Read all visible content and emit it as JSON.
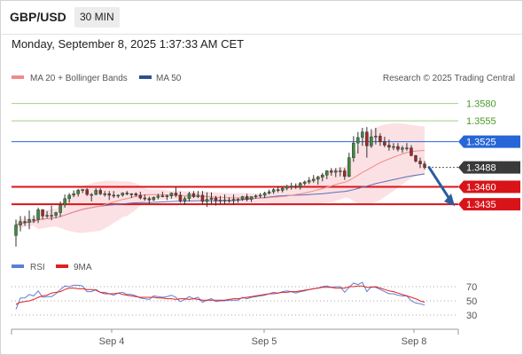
{
  "header": {
    "symbol": "GBP/USD",
    "timeframe": "30 MIN",
    "datetime": "Monday, September 8, 2025 1:37:33 AM CET"
  },
  "legend": {
    "ma20": "MA 20 + Bollinger Bands",
    "ma50": "MA 50",
    "credit": "Research © 2025 Trading Central"
  },
  "colors": {
    "up": "#3d8c3d",
    "down": "#a02828",
    "band": "#fadadd",
    "ma20": "#f08a8a",
    "ma50": "#5a6fb8",
    "resistance_green": "#a8cf8a",
    "pivot_blue": "#2766d6",
    "support_red": "#d8141a",
    "current_box": "#3a3a3a",
    "arrow": "#2b5c9e",
    "rsi": "#5b7fd6",
    "rsi_ma": "#e02020"
  },
  "chart_data": {
    "type": "candlestick",
    "ylim": [
      1.337,
      1.3605
    ],
    "price_scale": [
      "1.3580",
      "1.3555",
      "1.3525",
      "1.3488",
      "1.3460",
      "1.3435"
    ],
    "levels": [
      {
        "label": "1.3580",
        "value": 1.358,
        "kind": "resistance"
      },
      {
        "label": "1.3555",
        "value": 1.3555,
        "kind": "resistance"
      },
      {
        "label": "1.3525",
        "value": 1.3525,
        "kind": "pivot"
      },
      {
        "label": "1.3460",
        "value": 1.346,
        "kind": "support"
      },
      {
        "label": "1.3435",
        "value": 1.3435,
        "kind": "support"
      }
    ],
    "current": {
      "label": "1.3488",
      "value": 1.3488
    },
    "forecast": {
      "from": 1.3488,
      "to": 1.3435
    },
    "x_labels": [
      "Sep 4",
      "Sep 5",
      "Sep 8"
    ],
    "candles": [
      [
        1.339,
        1.3413,
        1.3374,
        1.3405
      ],
      [
        1.3405,
        1.3418,
        1.3396,
        1.341
      ],
      [
        1.341,
        1.3418,
        1.3404,
        1.3409
      ],
      [
        1.3409,
        1.3426,
        1.3399,
        1.3413
      ],
      [
        1.3413,
        1.3419,
        1.3408,
        1.3413
      ],
      [
        1.3413,
        1.343,
        1.3408,
        1.3427
      ],
      [
        1.3427,
        1.3428,
        1.3413,
        1.3418
      ],
      [
        1.3418,
        1.3425,
        1.3415,
        1.3419
      ],
      [
        1.3419,
        1.3433,
        1.3412,
        1.3419
      ],
      [
        1.3419,
        1.3424,
        1.3415,
        1.3423
      ],
      [
        1.3423,
        1.3439,
        1.3417,
        1.3434
      ],
      [
        1.3434,
        1.3449,
        1.343,
        1.3443
      ],
      [
        1.3443,
        1.3451,
        1.3437,
        1.3448
      ],
      [
        1.3448,
        1.3455,
        1.3445,
        1.345
      ],
      [
        1.345,
        1.3457,
        1.3446,
        1.3455
      ],
      [
        1.3455,
        1.3457,
        1.3451,
        1.3456
      ],
      [
        1.3456,
        1.3458,
        1.3447,
        1.3449
      ],
      [
        1.3449,
        1.3451,
        1.3439,
        1.3449
      ],
      [
        1.3449,
        1.3458,
        1.3448,
        1.3455
      ],
      [
        1.3455,
        1.3458,
        1.3448,
        1.345
      ],
      [
        1.345,
        1.3454,
        1.3446,
        1.345
      ],
      [
        1.345,
        1.3454,
        1.3441,
        1.3448
      ],
      [
        1.3448,
        1.3454,
        1.3444,
        1.3447
      ],
      [
        1.3447,
        1.3449,
        1.3444,
        1.3448
      ],
      [
        1.3448,
        1.3452,
        1.3446,
        1.3451
      ],
      [
        1.3451,
        1.3454,
        1.3448,
        1.345
      ],
      [
        1.345,
        1.3451,
        1.3444,
        1.345
      ],
      [
        1.345,
        1.3452,
        1.3446,
        1.3448
      ],
      [
        1.3448,
        1.3453,
        1.3442,
        1.3444
      ],
      [
        1.3444,
        1.3449,
        1.344,
        1.3443
      ],
      [
        1.3443,
        1.3446,
        1.3435,
        1.3441
      ],
      [
        1.3441,
        1.3446,
        1.344,
        1.3445
      ],
      [
        1.3445,
        1.345,
        1.3442,
        1.3447
      ],
      [
        1.3447,
        1.3453,
        1.3445,
        1.3446
      ],
      [
        1.3446,
        1.3449,
        1.3441,
        1.3447
      ],
      [
        1.3447,
        1.3452,
        1.3443,
        1.3451
      ],
      [
        1.3451,
        1.346,
        1.3445,
        1.3448
      ],
      [
        1.3448,
        1.3453,
        1.3437,
        1.344
      ],
      [
        1.344,
        1.3446,
        1.3434,
        1.3443
      ],
      [
        1.3443,
        1.3453,
        1.3439,
        1.345
      ],
      [
        1.345,
        1.3454,
        1.3444,
        1.3446
      ],
      [
        1.3446,
        1.3454,
        1.3444,
        1.3448
      ],
      [
        1.3448,
        1.3454,
        1.3435,
        1.3439
      ],
      [
        1.3439,
        1.3452,
        1.3431,
        1.3442
      ],
      [
        1.3442,
        1.3452,
        1.3435,
        1.3444
      ],
      [
        1.3444,
        1.3447,
        1.3433,
        1.344
      ],
      [
        1.344,
        1.3447,
        1.3435,
        1.3441
      ],
      [
        1.3441,
        1.3449,
        1.3435,
        1.3441
      ],
      [
        1.3441,
        1.3445,
        1.3437,
        1.3441
      ],
      [
        1.3441,
        1.3449,
        1.3434,
        1.3442
      ],
      [
        1.3442,
        1.3444,
        1.3437,
        1.3442
      ],
      [
        1.3442,
        1.3447,
        1.344,
        1.3446
      ],
      [
        1.3446,
        1.345,
        1.3439,
        1.3442
      ],
      [
        1.3442,
        1.3446,
        1.3438,
        1.3446
      ],
      [
        1.3446,
        1.3449,
        1.3443,
        1.3447
      ],
      [
        1.3447,
        1.3451,
        1.3444,
        1.3448
      ],
      [
        1.3448,
        1.3453,
        1.3444,
        1.3451
      ],
      [
        1.3451,
        1.3456,
        1.3449,
        1.3453
      ],
      [
        1.3453,
        1.3458,
        1.345,
        1.3456
      ],
      [
        1.3456,
        1.3461,
        1.3452,
        1.3455
      ],
      [
        1.3455,
        1.346,
        1.3452,
        1.3458
      ],
      [
        1.3458,
        1.3463,
        1.3455,
        1.3461
      ],
      [
        1.3461,
        1.3466,
        1.3456,
        1.3461
      ],
      [
        1.3461,
        1.3465,
        1.3457,
        1.346
      ],
      [
        1.346,
        1.3467,
        1.3456,
        1.3465
      ],
      [
        1.3465,
        1.3469,
        1.3462,
        1.3467
      ],
      [
        1.3467,
        1.3474,
        1.3464,
        1.3469
      ],
      [
        1.3469,
        1.3477,
        1.3466,
        1.3471
      ],
      [
        1.3471,
        1.3476,
        1.3463,
        1.3474
      ],
      [
        1.3474,
        1.348,
        1.3468,
        1.3477
      ],
      [
        1.3477,
        1.3484,
        1.3471,
        1.3483
      ],
      [
        1.3483,
        1.3487,
        1.3476,
        1.3481
      ],
      [
        1.3481,
        1.3487,
        1.3474,
        1.3483
      ],
      [
        1.3483,
        1.3488,
        1.3475,
        1.3483
      ],
      [
        1.3483,
        1.3487,
        1.347,
        1.3475
      ],
      [
        1.3475,
        1.3509,
        1.3474,
        1.3502
      ],
      [
        1.3502,
        1.3533,
        1.3496,
        1.3523
      ],
      [
        1.3523,
        1.3539,
        1.3508,
        1.3531
      ],
      [
        1.3531,
        1.3545,
        1.3519,
        1.3539
      ],
      [
        1.3539,
        1.3546,
        1.3502,
        1.3519
      ],
      [
        1.3519,
        1.3543,
        1.3516,
        1.3532
      ],
      [
        1.3532,
        1.3545,
        1.3521,
        1.3533
      ],
      [
        1.3533,
        1.3537,
        1.3519,
        1.3525
      ],
      [
        1.3525,
        1.3532,
        1.3517,
        1.352
      ],
      [
        1.352,
        1.3528,
        1.3512,
        1.3517
      ],
      [
        1.3517,
        1.3523,
        1.3513,
        1.3518
      ],
      [
        1.3518,
        1.3523,
        1.3511,
        1.3514
      ],
      [
        1.3514,
        1.3519,
        1.3509,
        1.3516
      ],
      [
        1.3516,
        1.3523,
        1.3512,
        1.3516
      ],
      [
        1.3516,
        1.352,
        1.3504,
        1.3505
      ],
      [
        1.3505,
        1.3506,
        1.3495,
        1.3497
      ],
      [
        1.3497,
        1.3502,
        1.3487,
        1.3493
      ],
      [
        1.3493,
        1.3497,
        1.3485,
        1.3488
      ]
    ],
    "rsi_panel": {
      "legend": [
        "RSI",
        "9MA"
      ],
      "scale": [
        "70",
        "50",
        "30"
      ],
      "ylim": [
        20,
        85
      ],
      "rsi": [
        38,
        54,
        54,
        59,
        57,
        64,
        55,
        56,
        56,
        60,
        66,
        71,
        70,
        72,
        72,
        71,
        63,
        63,
        66,
        62,
        62,
        60,
        58,
        61,
        62,
        59,
        59,
        57,
        54,
        53,
        52,
        57,
        56,
        55,
        56,
        58,
        55,
        49,
        52,
        56,
        53,
        55,
        48,
        51,
        53,
        49,
        50,
        50,
        51,
        51,
        51,
        55,
        53,
        55,
        56,
        57,
        58,
        60,
        62,
        61,
        63,
        64,
        63,
        61,
        63,
        64,
        66,
        67,
        68,
        70,
        71,
        69,
        70,
        70,
        62,
        69,
        75,
        73,
        76,
        63,
        70,
        69,
        66,
        63,
        60,
        60,
        58,
        57,
        57,
        50,
        47,
        46,
        44
      ],
      "ma9": [
        45,
        48,
        49,
        50,
        52,
        55,
        57,
        58,
        61,
        62,
        63,
        66,
        68,
        68,
        67,
        67,
        66,
        66,
        65,
        62,
        60,
        60,
        60,
        61,
        59,
        58,
        57,
        56,
        55,
        55,
        55,
        55,
        54,
        54,
        53,
        53,
        52,
        53,
        53,
        52,
        53,
        52,
        51,
        51,
        51,
        51,
        51,
        51,
        52,
        53,
        53,
        54,
        55,
        56,
        57,
        58,
        59,
        60,
        60,
        61,
        62,
        62,
        63,
        63,
        64,
        65,
        66,
        67,
        68,
        69,
        69,
        69,
        68,
        68,
        68,
        70,
        70,
        71,
        71,
        69,
        69,
        70,
        68,
        66,
        64,
        63,
        61,
        59,
        57,
        55,
        53,
        50,
        48
      ]
    }
  }
}
